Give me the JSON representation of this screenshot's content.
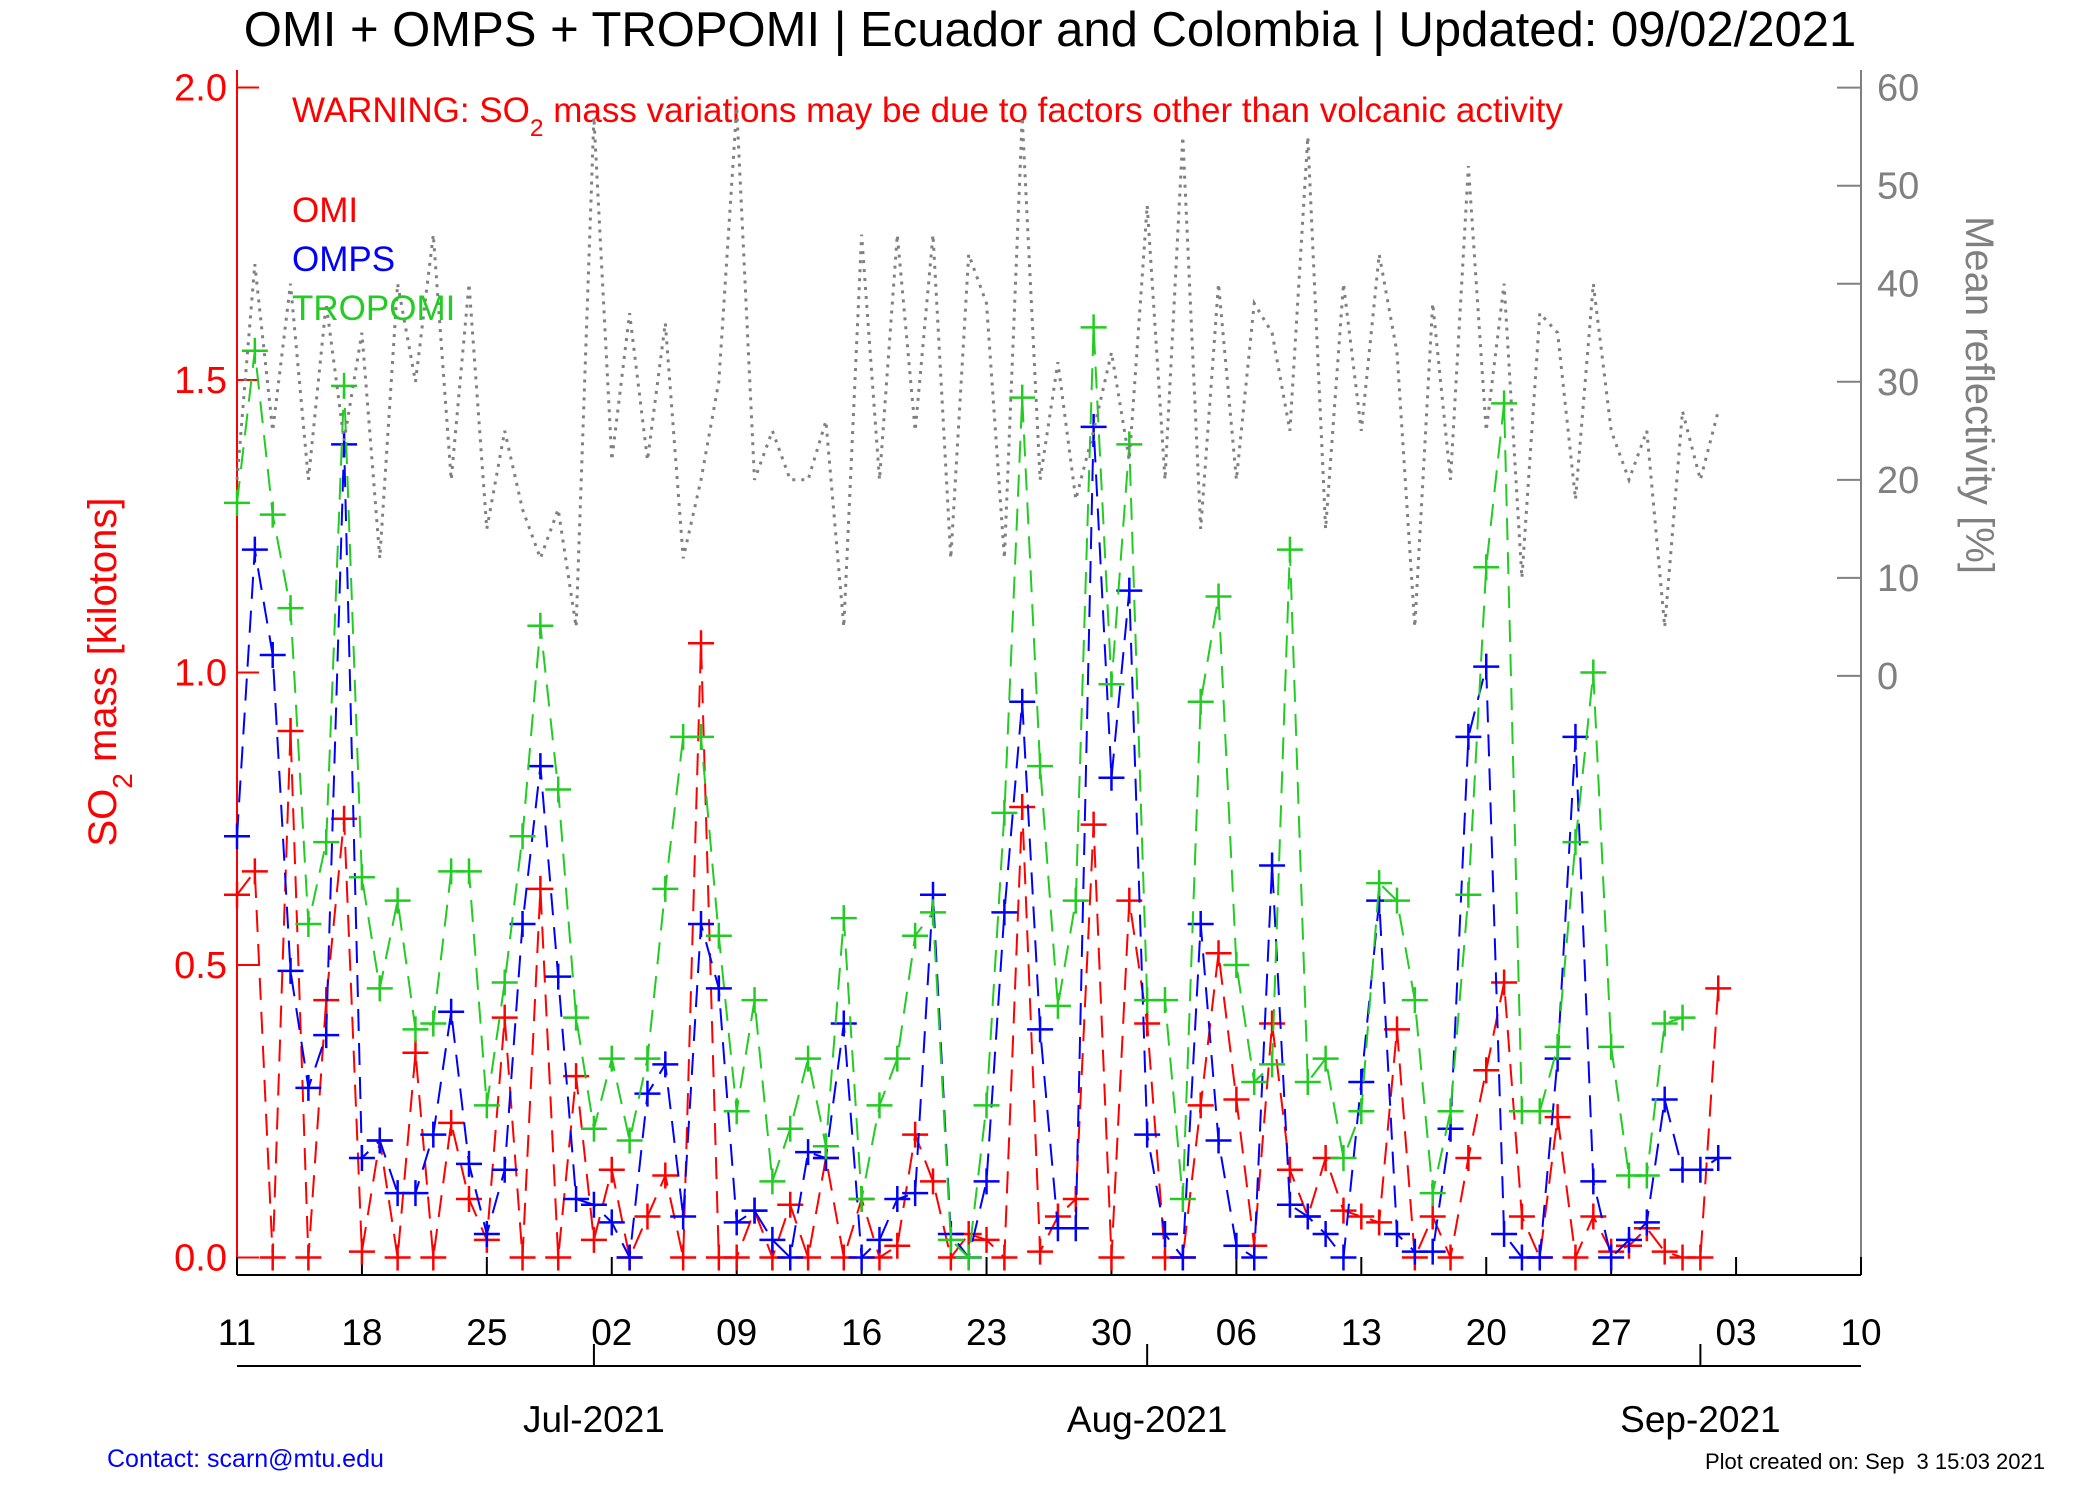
{
  "chart_data": {
    "type": "line",
    "title": "OMI + OMPS + TROPOMI | Ecuador and Colombia | Updated: 09/02/2021",
    "annotation": [
      "WARNING: SO",
      "2",
      " mass variations may be due to factors other than volcanic activity"
    ],
    "y_label": [
      "SO",
      "2",
      " mass [kilotons]"
    ],
    "y2_label": "Mean reflectivity [%]",
    "contact": "Contact: scarn@mtu.edu",
    "created": "Plot created on: Sep  3 15:03 2021",
    "x": [
      "2021-06-11",
      "2021-06-12",
      "2021-06-13",
      "2021-06-14",
      "2021-06-15",
      "2021-06-16",
      "2021-06-17",
      "2021-06-18",
      "2021-06-19",
      "2021-06-20",
      "2021-06-21",
      "2021-06-22",
      "2021-06-23",
      "2021-06-24",
      "2021-06-25",
      "2021-06-26",
      "2021-06-27",
      "2021-06-28",
      "2021-06-29",
      "2021-06-30",
      "2021-07-01",
      "2021-07-02",
      "2021-07-03",
      "2021-07-04",
      "2021-07-05",
      "2021-07-06",
      "2021-07-07",
      "2021-07-08",
      "2021-07-09",
      "2021-07-10",
      "2021-07-11",
      "2021-07-12",
      "2021-07-13",
      "2021-07-14",
      "2021-07-15",
      "2021-07-16",
      "2021-07-17",
      "2021-07-18",
      "2021-07-19",
      "2021-07-20",
      "2021-07-21",
      "2021-07-22",
      "2021-07-23",
      "2021-07-24",
      "2021-07-25",
      "2021-07-26",
      "2021-07-27",
      "2021-07-28",
      "2021-07-29",
      "2021-07-30",
      "2021-07-31",
      "2021-08-01",
      "2021-08-02",
      "2021-08-03",
      "2021-08-04",
      "2021-08-05",
      "2021-08-06",
      "2021-08-07",
      "2021-08-08",
      "2021-08-09",
      "2021-08-10",
      "2021-08-11",
      "2021-08-12",
      "2021-08-13",
      "2021-08-14",
      "2021-08-15",
      "2021-08-16",
      "2021-08-17",
      "2021-08-18",
      "2021-08-19",
      "2021-08-20",
      "2021-08-21",
      "2021-08-22",
      "2021-08-23",
      "2021-08-24",
      "2021-08-25",
      "2021-08-26",
      "2021-08-27",
      "2021-08-28",
      "2021-08-29",
      "2021-08-30",
      "2021-08-31",
      "2021-09-01",
      "2021-09-02"
    ],
    "series": [
      {
        "name": "OMI",
        "color": "#ff0000",
        "values": [
          0.62,
          0.66,
          0.0,
          0.9,
          0.0,
          0.44,
          0.75,
          0.01,
          0.2,
          0.0,
          0.35,
          0.0,
          0.23,
          0.1,
          0.03,
          0.41,
          0.0,
          0.63,
          0.0,
          0.31,
          0.03,
          0.15,
          0.0,
          0.07,
          0.14,
          0.0,
          1.05,
          0.0,
          0.0,
          0.08,
          0.0,
          0.09,
          0.0,
          0.17,
          0.0,
          0.1,
          0.0,
          0.02,
          0.21,
          0.13,
          0.0,
          0.04,
          0.03,
          0.0,
          0.77,
          0.01,
          0.07,
          0.1,
          0.74,
          0.0,
          0.61,
          0.4,
          0.0,
          0.0,
          0.26,
          0.52,
          0.27,
          0.02,
          0.4,
          0.15,
          0.07,
          0.17,
          0.08,
          0.07,
          0.06,
          0.39,
          0.0,
          0.07,
          0.0,
          0.17,
          0.32,
          0.47,
          0.07,
          0.0,
          0.24,
          0.0,
          0.07,
          0.01,
          0.02,
          0.05,
          0.01,
          0.0,
          0.0,
          0.46
        ]
      },
      {
        "name": "OMPS",
        "color": "#0000ff",
        "values": [
          0.72,
          1.21,
          1.03,
          0.49,
          0.29,
          0.38,
          1.39,
          0.17,
          0.2,
          0.11,
          0.11,
          0.21,
          0.42,
          0.16,
          0.04,
          0.15,
          0.57,
          0.84,
          0.48,
          0.1,
          0.09,
          0.06,
          0.0,
          0.28,
          0.33,
          0.07,
          0.57,
          0.46,
          0.06,
          0.08,
          0.03,
          0.0,
          0.18,
          0.17,
          0.4,
          0.0,
          0.03,
          0.1,
          0.11,
          0.62,
          0.04,
          0.0,
          0.13,
          0.59,
          0.95,
          0.39,
          0.05,
          0.05,
          1.42,
          0.82,
          1.14,
          0.21,
          0.04,
          0.0,
          0.57,
          0.2,
          0.02,
          0.0,
          0.67,
          0.09,
          0.07,
          0.04,
          0.0,
          0.3,
          0.61,
          0.04,
          0.01,
          0.01,
          0.22,
          0.89,
          1.01,
          0.04,
          0.0,
          0.0,
          0.34,
          0.89,
          0.13,
          0.0,
          0.03,
          0.06,
          0.27,
          0.15,
          0.15,
          0.17
        ]
      },
      {
        "name": "TROPOMI",
        "color": "#22cc22",
        "values": [
          1.29,
          1.55,
          1.27,
          1.11,
          0.57,
          0.71,
          1.49,
          0.65,
          0.46,
          0.61,
          0.39,
          0.4,
          0.66,
          0.66,
          0.26,
          0.47,
          0.72,
          1.08,
          0.8,
          0.41,
          0.22,
          0.34,
          0.2,
          0.34,
          0.63,
          0.89,
          0.89,
          0.55,
          0.25,
          0.44,
          0.13,
          0.22,
          0.34,
          0.19,
          0.58,
          0.1,
          0.26,
          0.34,
          0.55,
          0.59,
          0.03,
          0.0,
          0.26,
          0.76,
          1.47,
          0.84,
          0.43,
          0.61,
          1.59,
          0.98,
          1.39,
          0.44,
          0.44,
          0.1,
          0.95,
          1.13,
          0.5,
          0.3,
          0.33,
          1.21,
          0.3,
          0.34,
          0.17,
          0.25,
          0.64,
          0.61,
          0.44,
          0.11,
          0.25,
          0.62,
          1.18,
          1.46,
          0.25,
          0.25,
          0.36,
          0.71,
          1.0,
          0.36,
          0.14,
          0.14,
          0.4,
          0.41,
          null,
          null
        ]
      },
      {
        "color": "#808080",
        "axis": "y2",
        "style": "dotted",
        "values": [
          20,
          42,
          25,
          40,
          20,
          38,
          24,
          35,
          12,
          40,
          30,
          45,
          20,
          40,
          15,
          25,
          17,
          12,
          17,
          5,
          57,
          22,
          37,
          22,
          36,
          12,
          20,
          30,
          58,
          20,
          25,
          20,
          20,
          26,
          5,
          45,
          20,
          45,
          25,
          45,
          12,
          43,
          38,
          12,
          57,
          20,
          32,
          18,
          25,
          33,
          22,
          48,
          20,
          55,
          15,
          40,
          20,
          38,
          35,
          25,
          55,
          15,
          40,
          25,
          43,
          33,
          5,
          38,
          20,
          52,
          25,
          40,
          10,
          37,
          35,
          18,
          40,
          25,
          20,
          25,
          5,
          27,
          20,
          27
        ]
      }
    ],
    "xlim": [
      "2021-06-11",
      "2021-09-10"
    ],
    "xticks": [
      {
        "value": "2021-06-11",
        "label": "11"
      },
      {
        "value": "2021-06-18",
        "label": "18"
      },
      {
        "value": "2021-06-25",
        "label": "25"
      },
      {
        "value": "2021-07-02",
        "label": "02"
      },
      {
        "value": "2021-07-09",
        "label": "09"
      },
      {
        "value": "2021-07-16",
        "label": "16"
      },
      {
        "value": "2021-07-23",
        "label": "23"
      },
      {
        "value": "2021-07-30",
        "label": "30"
      },
      {
        "value": "2021-08-06",
        "label": "06"
      },
      {
        "value": "2021-08-13",
        "label": "13"
      },
      {
        "value": "2021-08-20",
        "label": "20"
      },
      {
        "value": "2021-08-27",
        "label": "27"
      },
      {
        "value": "2021-09-03",
        "label": "03"
      },
      {
        "value": "2021-09-10",
        "label": "10"
      }
    ],
    "month_ticks": [
      {
        "value": "2021-07-01",
        "label": "Jul-2021"
      },
      {
        "value": "2021-08-01",
        "label": "Aug-2021"
      },
      {
        "value": "2021-09-01",
        "label": "Sep-2021"
      }
    ],
    "ylim": [
      -0.03,
      2.03
    ],
    "yticks": [
      {
        "value": 0,
        "label": "0.0"
      },
      0.5,
      {
        "value": 1,
        "label": "1.0"
      },
      1.5,
      {
        "value": 2,
        "label": "2.0"
      }
    ],
    "y2lim": [
      -61.1,
      61.8
    ],
    "y2ticks": [
      0,
      10,
      20,
      30,
      40,
      50,
      60
    ],
    "legend": "top-left"
  }
}
